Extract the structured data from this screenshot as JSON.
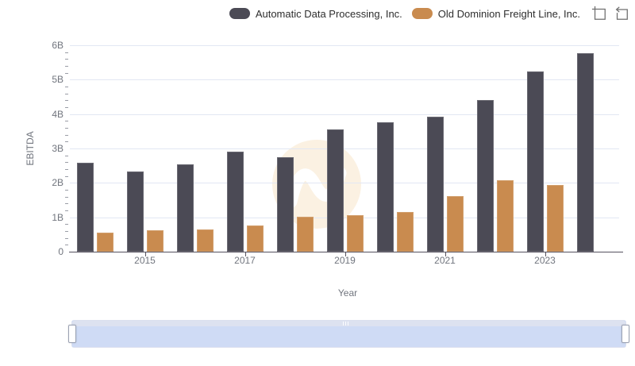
{
  "legend": {
    "toolbox": [
      {
        "name": "zoom-icon"
      },
      {
        "name": "restore-icon"
      }
    ]
  },
  "chart_data": {
    "type": "bar",
    "title": "",
    "xlabel": "Year",
    "ylabel": "EBITDA",
    "unit": "billions USD",
    "categories": [
      2014,
      2015,
      2016,
      2017,
      2018,
      2019,
      2020,
      2021,
      2022,
      2023,
      2024
    ],
    "x_tick_labels": [
      "2015",
      "2017",
      "2019",
      "2021",
      "2023"
    ],
    "y_ticks": [
      {
        "v": 0,
        "label": "0"
      },
      {
        "v": 1,
        "label": "1B"
      },
      {
        "v": 2,
        "label": "2B"
      },
      {
        "v": 3,
        "label": "3B"
      },
      {
        "v": 4,
        "label": "4B"
      },
      {
        "v": 5,
        "label": "5B"
      },
      {
        "v": 6,
        "label": "6B"
      }
    ],
    "ylim": [
      0,
      6
    ],
    "grid": true,
    "legend_position": "top-right",
    "series": [
      {
        "name": "Automatic Data Processing, Inc.",
        "color": "#4B4A55",
        "values": [
          2.58,
          2.33,
          2.55,
          2.91,
          2.74,
          3.55,
          3.77,
          3.93,
          4.41,
          5.25,
          5.78
        ]
      },
      {
        "name": "Old Dominion Freight Line, Inc.",
        "color": "#C98B4F",
        "values": [
          0.56,
          0.63,
          0.65,
          0.76,
          1.02,
          1.07,
          1.16,
          1.62,
          2.07,
          1.93,
          null
        ]
      }
    ],
    "colors": {
      "gridline": "#E2E7F3",
      "axis_line": "#55525E",
      "tick_text": "#71757E",
      "watermark": "#FBF1E2",
      "slider_fill": "#CBD8F4",
      "slider_line": "#AFC3EC"
    }
  }
}
